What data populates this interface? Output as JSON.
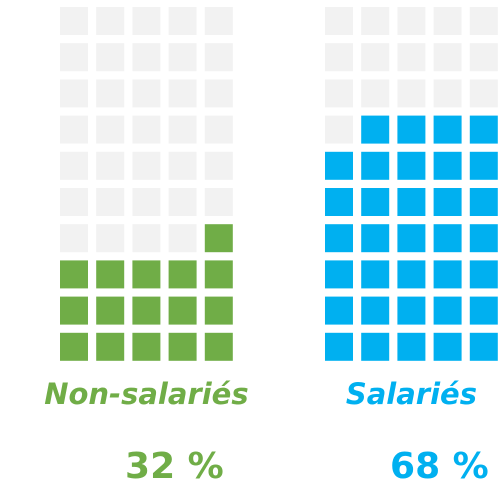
{
  "chart_data": {
    "type": "waffle",
    "categories": [
      "Non-salariés",
      "Salariés"
    ],
    "values": [
      32,
      68
    ],
    "value_labels": [
      "32 %",
      "68 %"
    ],
    "colors": [
      "#70ad47",
      "#00b0f0"
    ],
    "empty_color": "#f2f2f2"
  }
}
